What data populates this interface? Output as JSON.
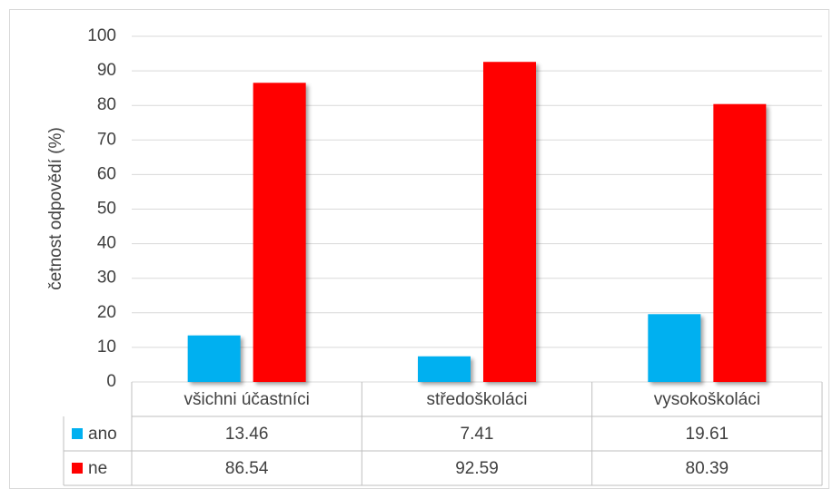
{
  "chart_data": {
    "type": "bar",
    "y_label": "četnost odpovědí (%)",
    "categories": [
      "všichni účastníci",
      "středoškoláci",
      "vysokoškoláci"
    ],
    "series": [
      {
        "name": "ano",
        "color": "#00b0f0",
        "values": [
          13.46,
          7.41,
          19.61
        ]
      },
      {
        "name": "ne",
        "color": "#ff0000",
        "values": [
          86.54,
          92.59,
          80.39
        ]
      }
    ],
    "ylim": [
      0,
      100
    ],
    "yticks": [
      0,
      10,
      20,
      30,
      40,
      50,
      60,
      70,
      80,
      90,
      100
    ],
    "grid": true,
    "data_table": true
  }
}
